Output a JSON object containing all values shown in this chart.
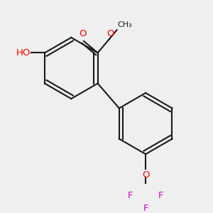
{
  "bg_color": "#efefef",
  "bond_color": "#1a1a1a",
  "bond_width": 1.5,
  "atom_colors": {
    "O": "#ff0000",
    "F": "#cc00cc",
    "H": "#4a9a9a",
    "C": "#1a1a1a"
  },
  "font_size": 9.5,
  "fig_size": [
    3.0,
    3.0
  ],
  "dpi": 100
}
